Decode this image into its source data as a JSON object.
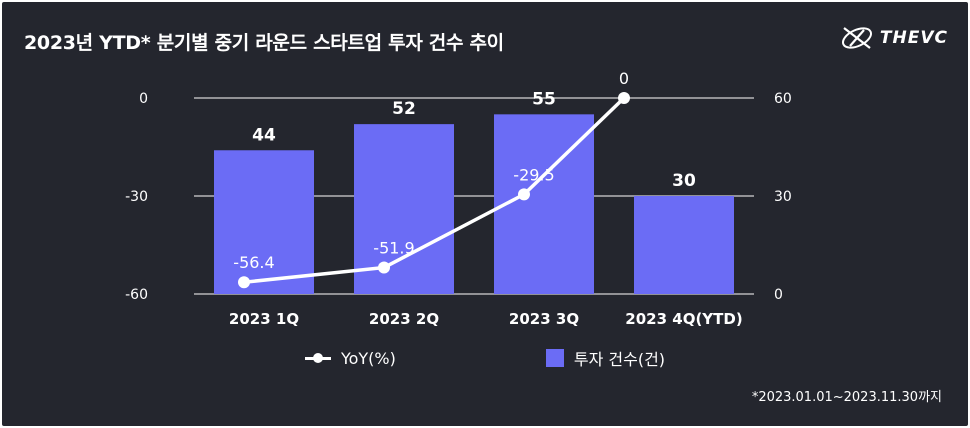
{
  "title": "2023년 YTD* 분기별 중기 라운드 스타트업 투자 건수 추이",
  "brand": "THEVC",
  "footnote": "*2023.01.01~2023.11.30까지",
  "colors": {
    "bar": "#6b6cf5",
    "line": "#ffffff",
    "grid": "#ffffff"
  },
  "chart_data": {
    "type": "bar",
    "categories": [
      "2023 1Q",
      "2023 2Q",
      "2023 3Q",
      "2023 4Q(YTD)"
    ],
    "series": [
      {
        "name": "투자 건수(건)",
        "type": "bar",
        "axis": "right",
        "values": [
          44,
          52,
          55,
          30
        ]
      },
      {
        "name": "YoY(%)",
        "type": "line",
        "axis": "left",
        "values": [
          -56.4,
          -51.9,
          -29.5,
          0
        ]
      }
    ],
    "left_axis": {
      "range": [
        -60,
        0
      ],
      "ticks": [
        0,
        -30,
        -60
      ]
    },
    "right_axis": {
      "range": [
        0,
        60
      ],
      "ticks": [
        60,
        30,
        0
      ]
    },
    "bar_labels": [
      "44",
      "52",
      "55",
      "30"
    ],
    "line_labels": [
      "-56.4",
      "-51.9",
      "-29.5",
      "0"
    ],
    "legend": [
      "YoY(%)",
      "투자 건수(건)"
    ]
  }
}
